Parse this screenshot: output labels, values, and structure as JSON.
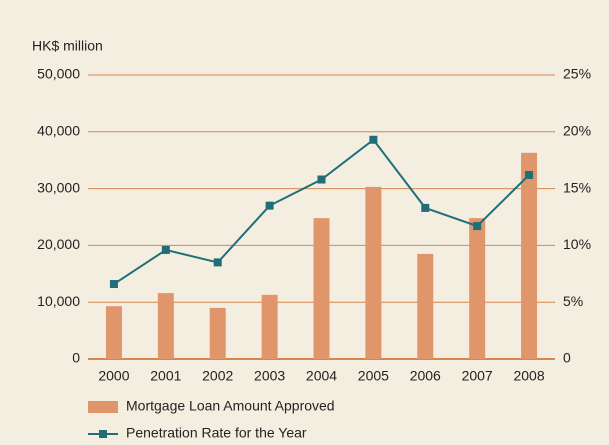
{
  "chart_data": {
    "type": "bar_line",
    "y_axis_label": "HK$ million",
    "categories": [
      "2000",
      "2001",
      "2002",
      "2003",
      "2004",
      "2005",
      "2006",
      "2007",
      "2008"
    ],
    "series": [
      {
        "name": "Mortgage Loan Amount Approved",
        "type": "bar",
        "color": "#e0956b",
        "axis": "y",
        "values": [
          9300,
          11600,
          9000,
          11300,
          24800,
          30300,
          18500,
          24800,
          36300
        ]
      },
      {
        "name": "Penetration Rate for the Year",
        "type": "line",
        "color": "#1f6e78",
        "axis": "y2",
        "values": [
          6.6,
          9.6,
          8.5,
          13.5,
          15.8,
          19.3,
          13.3,
          11.7,
          16.2
        ]
      }
    ],
    "ylim": [
      0,
      50000
    ],
    "yticks": [
      0,
      {
        "value": 10000,
        "label": "10,000"
      },
      {
        "value": 20000,
        "label": "20,000"
      },
      {
        "value": 30000,
        "label": "30,000"
      },
      {
        "value": 40000,
        "label": "40,000"
      },
      {
        "value": 50000,
        "label": "50,000"
      }
    ],
    "y2lim": [
      0,
      25
    ],
    "y2ticks": [
      0,
      {
        "value": 5,
        "label": "5%"
      },
      {
        "value": 10,
        "label": "10%"
      },
      {
        "value": 15,
        "label": "15%"
      },
      {
        "value": 20,
        "label": "20%"
      },
      {
        "value": 25,
        "label": "25%"
      }
    ],
    "grid": true
  }
}
